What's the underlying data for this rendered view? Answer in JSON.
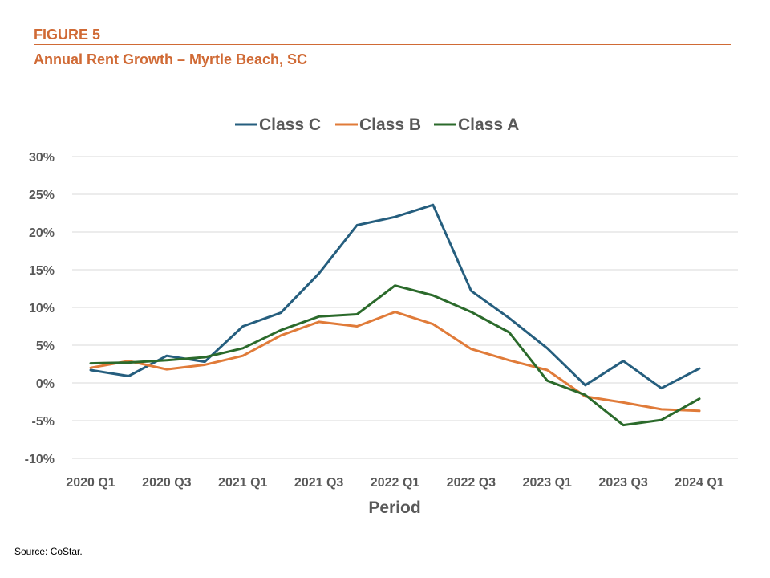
{
  "figure": {
    "label": "FIGURE 5",
    "title": "Annual Rent Growth – Myrtle Beach, SC",
    "source": "Source: CoStar."
  },
  "chart_data": {
    "type": "line",
    "title": "Annual Rent Growth – Myrtle Beach, SC",
    "xlabel": "Period",
    "ylabel": "",
    "ylim": [
      -10,
      30
    ],
    "y_ticks": [
      30,
      25,
      20,
      15,
      10,
      5,
      0,
      -5,
      -10
    ],
    "y_tick_labels": [
      "30%",
      "25%",
      "20%",
      "15%",
      "10%",
      "5%",
      "0%",
      "-5%",
      "-10%"
    ],
    "categories": [
      "2020 Q1",
      "2020 Q2",
      "2020 Q3",
      "2020 Q4",
      "2021 Q1",
      "2021 Q2",
      "2021 Q3",
      "2021 Q4",
      "2022 Q1",
      "2022 Q2",
      "2022 Q3",
      "2022 Q4",
      "2023 Q1",
      "2023 Q2",
      "2023 Q3",
      "2023 Q4",
      "2024 Q1"
    ],
    "x_tick_labels": [
      "2020 Q1",
      "2020 Q3",
      "2021 Q1",
      "2021 Q3",
      "2022 Q1",
      "2022 Q3",
      "2023 Q1",
      "2023 Q3",
      "2024 Q1"
    ],
    "legend_position": "top-center",
    "grid": true,
    "series": [
      {
        "name": "Class C",
        "color": "#255e7e",
        "values": [
          1.7,
          0.9,
          3.6,
          2.8,
          7.5,
          9.3,
          14.5,
          20.9,
          22.0,
          23.6,
          12.2,
          8.6,
          4.6,
          -0.3,
          2.9,
          -0.7,
          1.9
        ]
      },
      {
        "name": "Class B",
        "color": "#e07b39",
        "values": [
          2.0,
          2.9,
          1.8,
          2.4,
          3.6,
          6.3,
          8.1,
          7.5,
          9.4,
          7.8,
          4.5,
          3.0,
          1.7,
          -1.8,
          -2.6,
          -3.5,
          -3.7
        ]
      },
      {
        "name": "Class A",
        "color": "#2b6a2b",
        "values": [
          2.6,
          2.7,
          3.0,
          3.4,
          4.6,
          7.0,
          8.8,
          9.1,
          12.9,
          11.6,
          9.4,
          6.7,
          0.3,
          -1.6,
          -5.6,
          -4.9,
          -2.1
        ]
      }
    ]
  }
}
